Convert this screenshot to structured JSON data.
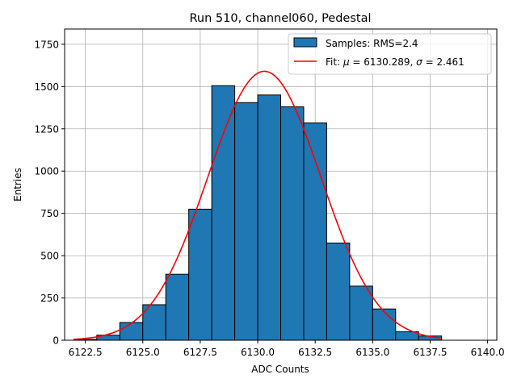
{
  "chart_data": {
    "type": "bar",
    "title": "Run 510, channel060, Pedestal",
    "xlabel": "ADC Counts",
    "ylabel": "Entries",
    "xlim": [
      6121.6,
      6140.4
    ],
    "ylim": [
      0,
      1840
    ],
    "xticks": [
      6122.5,
      6125.0,
      6127.5,
      6130.0,
      6132.5,
      6135.0,
      6137.5,
      6140.0
    ],
    "xtick_labels": [
      "6122.5",
      "6125.0",
      "6127.5",
      "6130.0",
      "6132.5",
      "6135.0",
      "6137.5",
      "6140.0"
    ],
    "yticks": [
      0,
      250,
      500,
      750,
      1000,
      1250,
      1500,
      1750
    ],
    "ytick_labels": [
      "0",
      "250",
      "500",
      "750",
      "1000",
      "1250",
      "1500",
      "1750"
    ],
    "grid": true,
    "legend_position": "top-right",
    "histogram": {
      "name": "Samples: RMS=2.4",
      "color": "#1f77b4",
      "edge_color": "#000000",
      "bin_edges": [
        6122,
        6123,
        6124,
        6125,
        6126,
        6127,
        6128,
        6129,
        6130,
        6131,
        6132,
        6133,
        6134,
        6135,
        6136,
        6137,
        6138
      ],
      "values": [
        5,
        30,
        105,
        210,
        390,
        775,
        1505,
        1405,
        1450,
        1380,
        1285,
        575,
        320,
        185,
        50,
        25
      ]
    },
    "fit": {
      "name": "Fit: μ = 6130.289, σ = 2.461",
      "name_parts": [
        "Fit: ",
        "μ",
        " = 6130.289, ",
        "σ",
        " = 2.461"
      ],
      "color": "#ff0000",
      "mu": 6130.289,
      "sigma": 2.461,
      "amplitude": 1590,
      "x_range": [
        6122,
        6138
      ]
    }
  }
}
